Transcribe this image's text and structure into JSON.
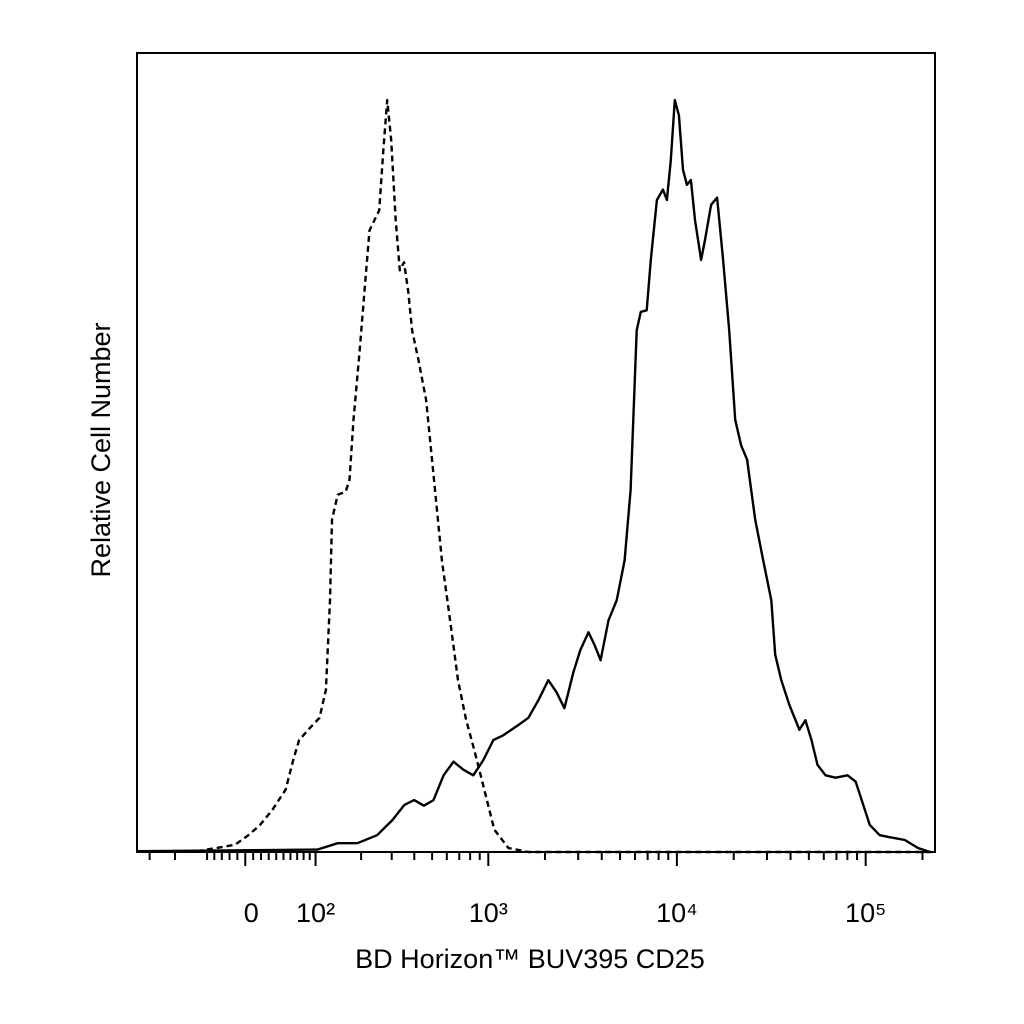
{
  "chart_data": {
    "type": "line",
    "x_label": "BD Horizon™ BUV395 CD25",
    "y_label": "Relative Cell Number",
    "xscale": "biexponential",
    "xlim": [
      -180,
      232900
    ],
    "ylim": [
      0,
      100
    ],
    "xticks": [
      0,
      {
        "value": 100,
        "label": "10²"
      },
      {
        "value": 1000,
        "label": "10³"
      },
      {
        "value": 10000,
        "label": "10⁴"
      },
      {
        "value": 100000,
        "label": "10⁵"
      }
    ],
    "xminorticks": [
      -150,
      -100,
      -50,
      -40,
      -30,
      -20,
      -10,
      10,
      20,
      30,
      40,
      50,
      60,
      70,
      80,
      90,
      200,
      300,
      400,
      500,
      600,
      700,
      800,
      900,
      2000,
      3000,
      4000,
      5000,
      6000,
      7000,
      8000,
      9000,
      20000,
      30000,
      40000,
      50000,
      60000,
      70000,
      80000,
      90000,
      200000
    ],
    "series": [
      {
        "color": "#000000",
        "line_style": "dashed",
        "x": [
          -180,
          -64,
          -13,
          2.5,
          18,
          35,
          53,
          64,
          73,
          90,
          107,
          119,
          127,
          131,
          143,
          161,
          170,
          180,
          196,
          212,
          224,
          242,
          255,
          269,
          283,
          298,
          316,
          333,
          351,
          370,
          389,
          421,
          464,
          512,
          565,
          625,
          689,
          762,
          841,
          952,
          1076,
          1279,
          1635,
          232900
        ],
        "values": [
          0.1,
          0.1,
          0.9,
          2.0,
          3.3,
          5.3,
          7.8,
          11.5,
          14.0,
          15.5,
          16.8,
          20.3,
          31.5,
          41.6,
          44.7,
          45.1,
          46.6,
          54.1,
          62.8,
          71.6,
          77.8,
          79.3,
          80.3,
          87.8,
          94.1,
          89.1,
          79.1,
          72.8,
          73.8,
          70.3,
          65.3,
          61.6,
          56.6,
          46.6,
          36.5,
          29.0,
          21.5,
          16.5,
          12.8,
          7.8,
          2.8,
          0.5,
          0,
          0
        ]
      },
      {
        "color": "#000000",
        "line_style": "solid",
        "x": [
          -180,
          103,
          143,
          190,
          248,
          303,
          353,
          399,
          451,
          509,
          577,
          652,
          736,
          832,
          940,
          1063,
          1202,
          1445,
          1633,
          1845,
          2084,
          2301,
          2535,
          2831,
          3083,
          3404,
          3664,
          3945,
          4345,
          4797,
          5285,
          5689,
          6124,
          6442,
          6918,
          7278,
          7834,
          8433,
          8851,
          9290,
          9750,
          10250,
          10770,
          11300,
          11860,
          12470,
          13430,
          14090,
          15170,
          16330,
          17580,
          18920,
          20370,
          21880,
          23550,
          26000,
          28640,
          31620,
          33190,
          35730,
          39450,
          44570,
          47970,
          51640,
          55590,
          61240,
          69180,
          80170,
          88500,
          95300,
          105000,
          118600,
          137400,
          161100,
          189200,
          218800
        ],
        "values": [
          0.1,
          0.3,
          1.1,
          1.1,
          2.1,
          4.0,
          5.9,
          6.5,
          5.8,
          6.5,
          9.6,
          11.3,
          10.3,
          9.6,
          11.5,
          14.0,
          14.6,
          15.9,
          16.8,
          19.0,
          21.5,
          20.0,
          18.0,
          22.5,
          25.3,
          27.5,
          25.9,
          24.0,
          29.0,
          31.5,
          36.5,
          45.3,
          65.3,
          67.6,
          67.8,
          74.1,
          81.6,
          82.9,
          81.6,
          86.6,
          94.1,
          92.2,
          85.4,
          83.5,
          84.1,
          79.1,
          74.1,
          76.6,
          81.0,
          81.9,
          74.1,
          65.3,
          54.1,
          50.9,
          49.1,
          41.6,
          36.5,
          31.5,
          24.7,
          21.5,
          18.4,
          15.3,
          16.5,
          14.0,
          10.9,
          9.6,
          9.3,
          9.6,
          8.8,
          6.5,
          3.4,
          2.1,
          1.8,
          1.5,
          0.5,
          0
        ]
      }
    ]
  }
}
